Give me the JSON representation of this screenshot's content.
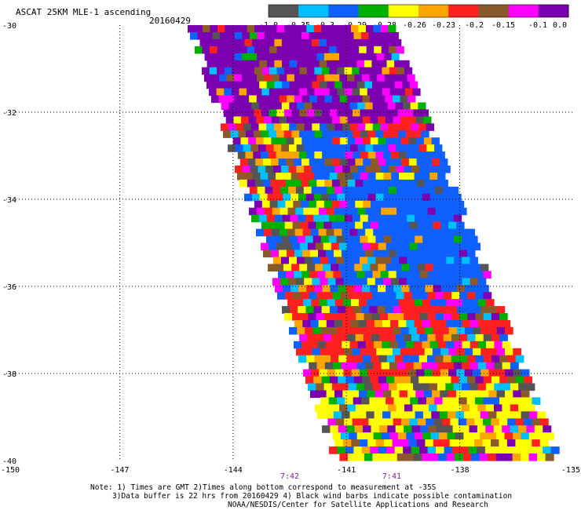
{
  "chart_data": {
    "type": "heatmap",
    "title": "ASCAT 25KM MLE-1 ascending",
    "date": "20160429",
    "x_ticks": [
      "-150",
      "-147",
      "-144",
      "-141",
      "-138",
      "-135"
    ],
    "y_ticks": [
      "-30",
      "-32",
      "-34",
      "-36",
      "-38",
      "-40"
    ],
    "xlim": [
      -150,
      -135
    ],
    "ylim": [
      -40,
      -30
    ],
    "grid": true,
    "times": [
      {
        "label": "7:42",
        "lon": -142.5
      },
      {
        "label": "7:41",
        "lon": -139.8
      }
    ],
    "colorbar": {
      "tick_labels": [
        "-1.0",
        "-0.35",
        "-0.3",
        "-0.29",
        "-0.28",
        "-0.26",
        "-0.23",
        "-0.2",
        "-0.15",
        "-0.1",
        "0.0"
      ],
      "colors": [
        "#555555",
        "#00bfff",
        "#1060ff",
        "#00b000",
        "#ffff00",
        "#ffa500",
        "#ff2020",
        "#8b5a2b",
        "#ff00ff",
        "#7a00b0"
      ]
    },
    "swath": {
      "top_lat": -30,
      "bottom_lat": -40,
      "left_lon_top": -145.2,
      "right_lon_top": -139.7,
      "left_lon_bottom": -141.4,
      "right_lon_bottom": -135.3
    },
    "regions": [
      {
        "lat_from": -30.0,
        "lat_to": -32.2,
        "lon_offset": 0.0,
        "dominant": "#7a00b0",
        "weight": 0.55
      },
      {
        "lat_from": -31.0,
        "lat_to": -32.6,
        "lon_offset": 0.7,
        "dominant": "#ff00ff",
        "weight": 0.25
      },
      {
        "lat_from": -32.0,
        "lat_to": -33.2,
        "lon_offset": 0.6,
        "dominant": "#ff2020",
        "weight": 0.3
      },
      {
        "lat_from": -32.3,
        "lat_to": -36.5,
        "lon_offset": 0.35,
        "dominant": "#1060ff",
        "weight": 0.45
      },
      {
        "lat_from": -33.5,
        "lat_to": -36.0,
        "lon_offset": 0.6,
        "dominant": "#1060ff",
        "weight": 0.6
      },
      {
        "lat_from": -36.0,
        "lat_to": -38.0,
        "lon_offset": 0.0,
        "dominant": "#ff2020",
        "weight": 0.3
      },
      {
        "lat_from": -38.0,
        "lat_to": -40.0,
        "lon_offset": 0.0,
        "dominant": "#ffff00",
        "weight": 0.3
      }
    ]
  },
  "notes": {
    "line1": "Note: 1) Times are GMT 2)Times along bottom correspond to measurement at -35S",
    "line2": "3)Data buffer is 22 hrs from 20160429 4) Black wind barbs indicate possible contamination",
    "line3": "NOAA/NESDIS/Center for Satellite Applications and Research"
  }
}
